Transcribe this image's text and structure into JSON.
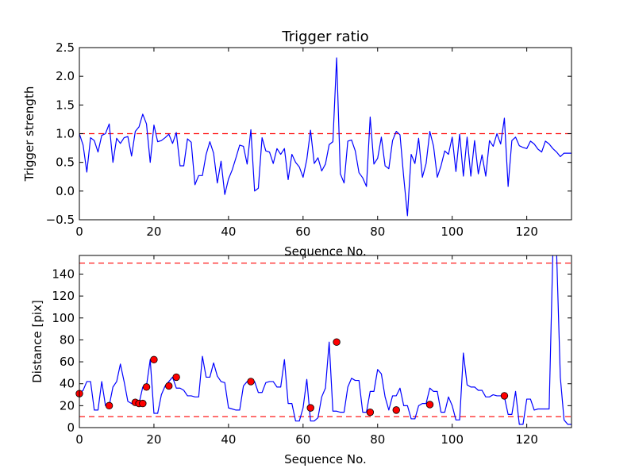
{
  "colors": {
    "line": "#0000ff",
    "threshold": "#ff0000",
    "marker": "#ff0000",
    "axes": "#000000"
  },
  "chart_data": [
    {
      "type": "line",
      "title": "Trigger ratio",
      "xlabel": "Sequence No.",
      "ylabel": "Trigger strength",
      "xlim": [
        0,
        132
      ],
      "ylim": [
        -0.5,
        2.5
      ],
      "xticks": [
        0,
        20,
        40,
        60,
        80,
        100,
        120
      ],
      "yticks": [
        -0.5,
        0.0,
        0.5,
        1.0,
        1.5,
        2.0,
        2.5
      ],
      "ytick_labels": [
        "−0.5",
        "0.0",
        "0.5",
        "1.0",
        "1.5",
        "2.0",
        "2.5"
      ],
      "threshold_lines": [
        1.0
      ],
      "series": [
        {
          "name": "trigger strength",
          "x": [
            0,
            1,
            2,
            3,
            4,
            5,
            6,
            7,
            8,
            9,
            10,
            11,
            12,
            13,
            14,
            15,
            16,
            17,
            18,
            19,
            20,
            21,
            22,
            23,
            24,
            25,
            26,
            27,
            28,
            29,
            30,
            31,
            32,
            33,
            34,
            35,
            36,
            37,
            38,
            39,
            40,
            41,
            42,
            43,
            44,
            45,
            46,
            47,
            48,
            49,
            50,
            51,
            52,
            53,
            54,
            55,
            56,
            57,
            58,
            59,
            60,
            61,
            62,
            63,
            64,
            65,
            66,
            67,
            68,
            69,
            70,
            71,
            72,
            73,
            74,
            75,
            76,
            77,
            78,
            79,
            80,
            81,
            82,
            83,
            84,
            85,
            86,
            87,
            88,
            89,
            90,
            91,
            92,
            93,
            94,
            95,
            96,
            97,
            98,
            99,
            100,
            101,
            102,
            103,
            104,
            105,
            106,
            107,
            108,
            109,
            110,
            111,
            112,
            113,
            114,
            115,
            116,
            117,
            118,
            119,
            120,
            121,
            122,
            123,
            124,
            125,
            126,
            127,
            128,
            129,
            130,
            131,
            132
          ],
          "values": [
            1.0,
            0.8,
            0.33,
            0.93,
            0.88,
            0.68,
            0.97,
            1.0,
            1.17,
            0.5,
            0.92,
            0.83,
            0.93,
            0.95,
            0.61,
            1.04,
            1.12,
            1.34,
            1.17,
            0.5,
            1.15,
            0.86,
            0.88,
            0.93,
            0.99,
            0.83,
            1.02,
            0.44,
            0.44,
            0.91,
            0.85,
            0.11,
            0.27,
            0.27,
            0.64,
            0.86,
            0.66,
            0.14,
            0.52,
            -0.06,
            0.21,
            0.37,
            0.58,
            0.8,
            0.78,
            0.47,
            1.07,
            0.0,
            0.05,
            0.93,
            0.7,
            0.68,
            0.48,
            0.74,
            0.64,
            0.74,
            0.2,
            0.64,
            0.5,
            0.42,
            0.24,
            0.55,
            1.06,
            0.48,
            0.58,
            0.35,
            0.47,
            0.81,
            0.86,
            2.32,
            0.3,
            0.14,
            0.87,
            0.89,
            0.7,
            0.32,
            0.23,
            0.08,
            1.29,
            0.47,
            0.57,
            0.94,
            0.44,
            0.39,
            0.88,
            1.04,
            0.98,
            0.24,
            -0.43,
            0.64,
            0.48,
            0.92,
            0.24,
            0.48,
            1.04,
            0.78,
            0.24,
            0.44,
            0.7,
            0.64,
            0.94,
            0.34,
            0.99,
            0.26,
            0.94,
            0.26,
            0.88,
            0.3,
            0.63,
            0.26,
            0.88,
            0.78,
            1.0,
            0.82,
            1.27,
            0.08,
            0.88,
            0.94,
            0.79,
            0.76,
            0.74,
            0.87,
            0.82,
            0.73,
            0.68,
            0.87,
            0.82,
            0.74,
            0.68,
            0.6,
            0.66,
            0.66,
            0.66
          ]
        }
      ]
    },
    {
      "type": "line",
      "title": "",
      "xlabel": "Sequence No.",
      "ylabel": "Distance [pix]",
      "xlim": [
        0,
        132
      ],
      "ylim": [
        0,
        157
      ],
      "xticks": [
        0,
        20,
        40,
        60,
        80,
        100,
        120
      ],
      "yticks": [
        0,
        20,
        40,
        60,
        80,
        100,
        120,
        140
      ],
      "ytick_labels": [
        "0",
        "20",
        "40",
        "60",
        "80",
        "100",
        "120",
        "140"
      ],
      "threshold_lines": [
        10,
        150
      ],
      "series": [
        {
          "name": "distance",
          "x": [
            0,
            1,
            2,
            3,
            4,
            5,
            6,
            7,
            8,
            9,
            10,
            11,
            12,
            13,
            14,
            15,
            16,
            17,
            18,
            19,
            20,
            21,
            22,
            23,
            24,
            25,
            26,
            27,
            28,
            29,
            30,
            31,
            32,
            33,
            34,
            35,
            36,
            37,
            38,
            39,
            40,
            41,
            42,
            43,
            44,
            45,
            46,
            47,
            48,
            49,
            50,
            51,
            52,
            53,
            54,
            55,
            56,
            57,
            58,
            59,
            60,
            61,
            62,
            63,
            64,
            65,
            66,
            67,
            68,
            69,
            70,
            71,
            72,
            73,
            74,
            75,
            76,
            77,
            78,
            79,
            80,
            81,
            82,
            83,
            84,
            85,
            86,
            87,
            88,
            89,
            90,
            91,
            92,
            93,
            94,
            95,
            96,
            97,
            98,
            99,
            100,
            101,
            102,
            103,
            104,
            105,
            106,
            107,
            108,
            109,
            110,
            111,
            112,
            113,
            114,
            115,
            116,
            117,
            118,
            119,
            120,
            121,
            122,
            123,
            124,
            125,
            126,
            127,
            128,
            129,
            130,
            131,
            132
          ],
          "values": [
            31,
            34,
            42,
            42,
            16,
            16,
            42,
            20,
            20,
            37,
            42,
            58,
            42,
            24,
            22,
            22,
            22,
            37,
            38,
            62,
            13,
            13,
            30,
            38,
            42,
            46,
            36,
            36,
            34,
            29,
            29,
            28,
            28,
            65,
            46,
            46,
            59,
            47,
            42,
            41,
            18,
            17,
            16,
            16,
            38,
            42,
            42,
            42,
            32,
            32,
            41,
            42,
            42,
            37,
            37,
            62,
            22,
            22,
            6,
            6,
            18,
            44,
            6,
            6,
            9,
            28,
            36,
            78,
            15,
            15,
            14,
            14,
            37,
            45,
            43,
            43,
            14,
            14,
            33,
            33,
            53,
            49,
            28,
            16,
            29,
            29,
            36,
            20,
            20,
            8,
            8,
            20,
            22,
            22,
            36,
            33,
            33,
            14,
            14,
            28,
            20,
            7,
            7,
            68,
            39,
            37,
            37,
            34,
            34,
            28,
            28,
            30,
            29,
            29,
            28,
            12,
            12,
            33,
            3,
            3,
            26,
            26,
            16,
            17,
            17,
            17,
            17,
            160,
            160,
            46,
            7,
            3,
            3
          ],
          "markers": [
            {
              "x": 0,
              "y": 31
            },
            {
              "x": 8,
              "y": 20
            },
            {
              "x": 15,
              "y": 23
            },
            {
              "x": 16,
              "y": 22
            },
            {
              "x": 17,
              "y": 22
            },
            {
              "x": 18,
              "y": 37
            },
            {
              "x": 20,
              "y": 62
            },
            {
              "x": 24,
              "y": 38
            },
            {
              "x": 26,
              "y": 46
            },
            {
              "x": 46,
              "y": 42
            },
            {
              "x": 62,
              "y": 18
            },
            {
              "x": 69,
              "y": 78
            },
            {
              "x": 78,
              "y": 14
            },
            {
              "x": 85,
              "y": 16
            },
            {
              "x": 94,
              "y": 21
            },
            {
              "x": 114,
              "y": 29
            }
          ]
        }
      ]
    }
  ]
}
